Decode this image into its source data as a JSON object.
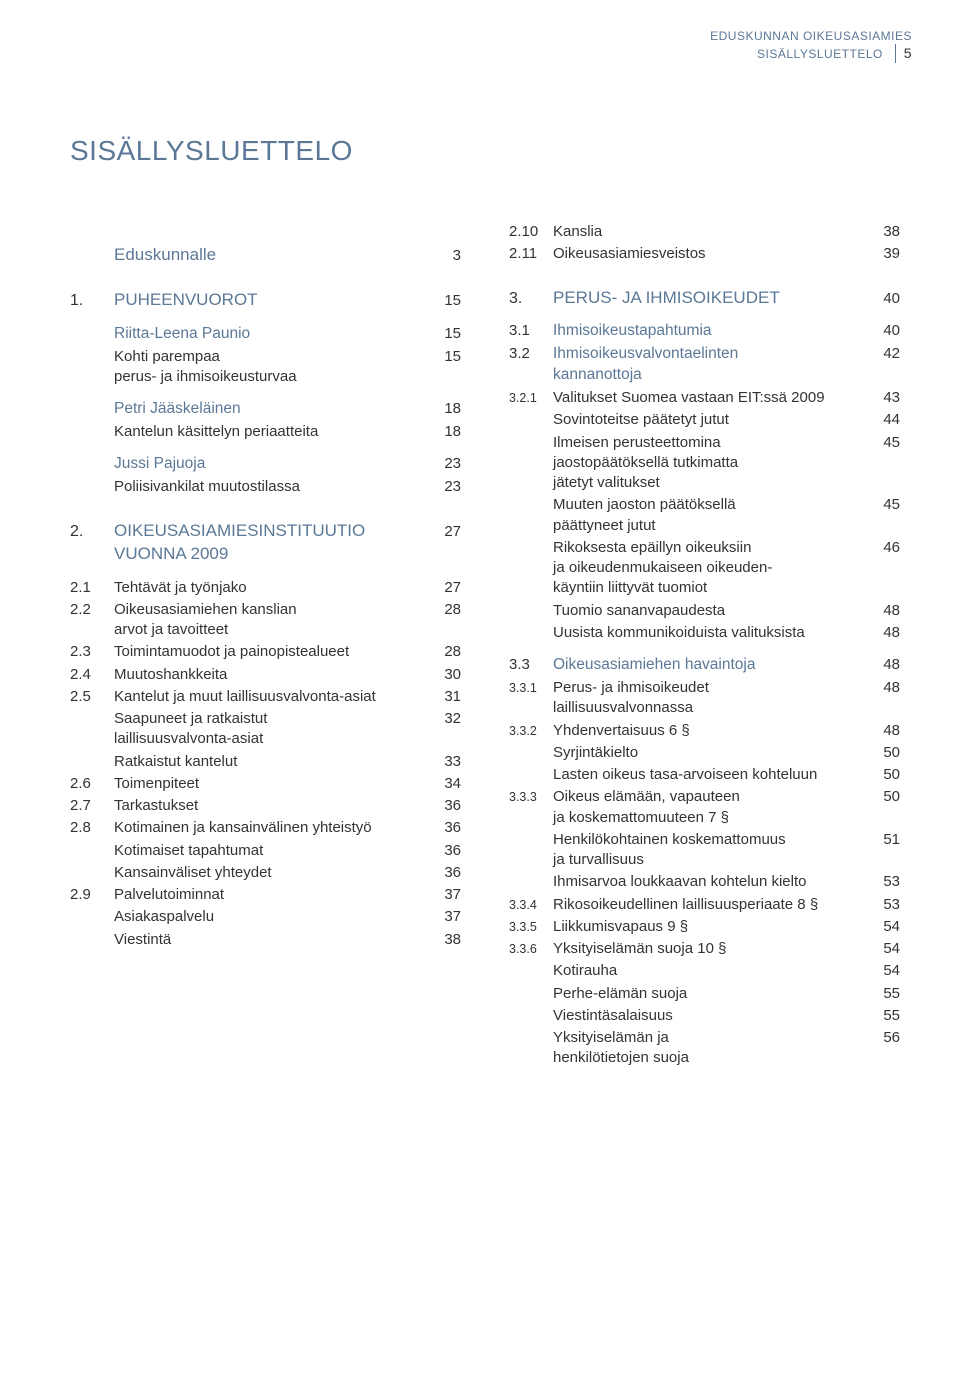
{
  "header": {
    "line1": "EDUSKUNNAN OIKEUSASIAMIES",
    "line2": "SISÄLLYSLUETTELO",
    "pagenum": "5"
  },
  "title": "SISÄLLYSLUETTELO",
  "colors": {
    "accent": "#5b7897",
    "text": "#333333",
    "bg": "#ffffff"
  },
  "left": [
    {
      "cls": "lvl-indent lvl-head",
      "num": "",
      "label": "Eduskunnalle",
      "page": "3"
    },
    {
      "cls": "lvl-indent lvl-head",
      "num": "1.",
      "label": "PUHEENVUOROT",
      "page": "15"
    },
    {
      "cls": "lvl-sep lvl1",
      "num": "",
      "label": "Riitta-Leena Paunio",
      "page": "15"
    },
    {
      "cls": "lvl2",
      "num": "",
      "label": "Kohti parempaa\nperus- ja ihmisoikeusturvaa",
      "page": "15"
    },
    {
      "cls": "lvl-sep lvl1",
      "num": "",
      "label": "Petri Jääskeläinen",
      "page": "18"
    },
    {
      "cls": "lvl2",
      "num": "",
      "label": "Kantelun käsittelyn periaatteita",
      "page": "18"
    },
    {
      "cls": "lvl-sep lvl1",
      "num": "",
      "label": "Jussi Pajuoja",
      "page": "23"
    },
    {
      "cls": "lvl2",
      "num": "",
      "label": "Poliisivankilat muutostilassa",
      "page": "23"
    },
    {
      "cls": "lvl-indent lvl-head",
      "num": "2.",
      "label": "OIKEUSASIAMIESINSTITUUTIO\nVUONNA 2009",
      "page": "27"
    },
    {
      "cls": "lvl-sep lvl2",
      "num": "2.1",
      "label": "Tehtävät ja työnjako",
      "page": "27"
    },
    {
      "cls": "lvl2",
      "num": "2.2",
      "label": "Oikeusasiamiehen kanslian\narvot ja tavoitteet",
      "page": "28"
    },
    {
      "cls": "lvl2",
      "num": "2.3",
      "label": "Toimintamuodot ja painopistealueet",
      "page": "28"
    },
    {
      "cls": "lvl2",
      "num": "2.4",
      "label": "Muutoshankkeita",
      "page": "30"
    },
    {
      "cls": "lvl2",
      "num": "2.5",
      "label": "Kantelut ja muut laillisuusvalvonta-asiat",
      "page": "31"
    },
    {
      "cls": "sub-indent",
      "num": "",
      "label": "Saapuneet ja ratkaistut\nlaillisuusvalvonta-asiat",
      "page": "32"
    },
    {
      "cls": "sub-indent",
      "num": "",
      "label": "Ratkaistut kantelut",
      "page": "33"
    },
    {
      "cls": "lvl2",
      "num": "2.6",
      "label": "Toimenpiteet",
      "page": "34"
    },
    {
      "cls": "lvl2",
      "num": "2.7",
      "label": "Tarkastukset",
      "page": "36"
    },
    {
      "cls": "lvl2",
      "num": "2.8",
      "label": "Kotimainen ja kansainvälinen yhteistyö",
      "page": "36"
    },
    {
      "cls": "sub-indent",
      "num": "",
      "label": "Kotimaiset tapahtumat",
      "page": "36"
    },
    {
      "cls": "sub-indent",
      "num": "",
      "label": "Kansainväliset yhteydet",
      "page": "36"
    },
    {
      "cls": "lvl2",
      "num": "2.9",
      "label": "Palvelutoiminnat",
      "page": "37"
    },
    {
      "cls": "sub-indent",
      "num": "",
      "label": "Asiakaspalvelu",
      "page": "37"
    },
    {
      "cls": "sub-indent",
      "num": "",
      "label": "Viestintä",
      "page": "38"
    }
  ],
  "right": [
    {
      "cls": "lvl2",
      "num": "2.10",
      "label": "Kanslia",
      "page": "38"
    },
    {
      "cls": "lvl2",
      "num": "2.11",
      "label": "Oikeusasiamiesveistos",
      "page": "39"
    },
    {
      "cls": "lvl-indent lvl-head",
      "num": "3.",
      "label": "PERUS- JA IHMISOIKEUDET",
      "page": "40"
    },
    {
      "cls": "lvl-sep lvl1",
      "num": "3.1",
      "label": "Ihmisoikeustapahtumia",
      "page": "40"
    },
    {
      "cls": "lvl1",
      "num": "3.2",
      "label": "Ihmisoikeusvalvontaelinten\nkannanottoja",
      "page": "42"
    },
    {
      "cls": "lvl3",
      "num": "3.2.1",
      "numcls": "small-num",
      "label": "Valitukset Suomea vastaan EIT:ssä 2009",
      "page": "43"
    },
    {
      "cls": "sub-indent",
      "num": "",
      "label": "Sovintoteitse päätetyt jutut",
      "page": "44"
    },
    {
      "cls": "sub-indent",
      "num": "",
      "label": "Ilmeisen perusteettomina\njaostopäätöksellä tutkimatta\njätetyt valitukset",
      "page": "45"
    },
    {
      "cls": "sub-indent",
      "num": "",
      "label": "Muuten jaoston päätöksellä\npäättyneet jutut",
      "page": "45"
    },
    {
      "cls": "sub-indent",
      "num": "",
      "label": "Rikoksesta epäillyn oikeuksiin\nja oikeudenmukaiseen oikeuden-\nkäyntiin liittyvät tuomiot",
      "page": "46"
    },
    {
      "cls": "sub-indent",
      "num": "",
      "label": "Tuomio sananvapaudesta",
      "page": "48"
    },
    {
      "cls": "sub-indent",
      "num": "",
      "label": "Uusista kommunikoiduista valituksista",
      "page": "48"
    },
    {
      "cls": "lvl-sep lvl1",
      "num": "3.3",
      "label": "Oikeusasiamiehen havaintoja",
      "page": "48"
    },
    {
      "cls": "lvl3",
      "num": "3.3.1",
      "numcls": "small-num",
      "label": "Perus- ja ihmisoikeudet\nlaillisuusvalvonnassa",
      "page": "48"
    },
    {
      "cls": "lvl3",
      "num": "3.3.2",
      "numcls": "small-num",
      "label": "Yhdenvertaisuus 6 §",
      "page": "48"
    },
    {
      "cls": "sub-indent",
      "num": "",
      "label": "Syrjintäkielto",
      "page": "50"
    },
    {
      "cls": "sub-indent",
      "num": "",
      "label": "Lasten oikeus tasa-arvoiseen kohteluun",
      "page": "50"
    },
    {
      "cls": "lvl3",
      "num": "3.3.3",
      "numcls": "small-num",
      "label": "Oikeus elämään, vapauteen\nja koskemattomuuteen 7 §",
      "page": "50"
    },
    {
      "cls": "sub-indent",
      "num": "",
      "label": "Henkilökohtainen koskemattomuus\nja turvallisuus",
      "page": "51"
    },
    {
      "cls": "sub-indent",
      "num": "",
      "label": "Ihmisarvoa loukkaavan kohtelun kielto",
      "page": "53"
    },
    {
      "cls": "lvl3",
      "num": "3.3.4",
      "numcls": "small-num",
      "label": "Rikosoikeudellinen laillisuusperiaate 8 §",
      "page": "53"
    },
    {
      "cls": "lvl3",
      "num": "3.3.5",
      "numcls": "small-num",
      "label": "Liikkumisvapaus 9 §",
      "page": "54"
    },
    {
      "cls": "lvl3",
      "num": "3.3.6",
      "numcls": "small-num",
      "label": "Yksityiselämän suoja 10 §",
      "page": "54"
    },
    {
      "cls": "sub-indent",
      "num": "",
      "label": "Kotirauha",
      "page": "54"
    },
    {
      "cls": "sub-indent",
      "num": "",
      "label": "Perhe-elämän suoja",
      "page": "55"
    },
    {
      "cls": "sub-indent",
      "num": "",
      "label": "Viestintäsalaisuus",
      "page": "55"
    },
    {
      "cls": "sub-indent",
      "num": "",
      "label": "Yksityiselämän ja\nhenkilötietojen suoja",
      "page": "56"
    }
  ]
}
